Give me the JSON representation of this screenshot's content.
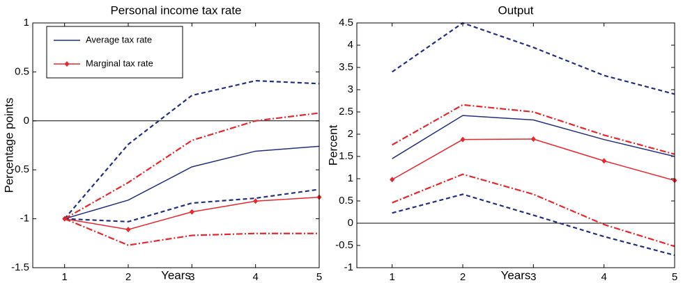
{
  "chart_data": [
    {
      "type": "line",
      "title": "Personal income tax rate",
      "xlabel": "Years",
      "ylabel": "Percentage points",
      "x": [
        1,
        2,
        3,
        4,
        5
      ],
      "xlim": [
        0.5,
        5
      ],
      "xticks": [
        1,
        2,
        3,
        4,
        5
      ],
      "ylim": [
        -1.5,
        1
      ],
      "yticks": [
        -1.5,
        -1,
        -0.5,
        0,
        0.5,
        1
      ],
      "zeroline": true,
      "legend": "upper left",
      "series": [
        {
          "name": "Average tax rate",
          "color": "#232f7e",
          "style": "solid",
          "values": [
            -1,
            -0.81,
            -0.47,
            -0.31,
            -0.26
          ]
        },
        {
          "name": "Marginal tax rate",
          "color": "#e8262b",
          "style": "solid",
          "marker": "diamond",
          "values": [
            -1,
            -1.11,
            -0.93,
            -0.82,
            -0.78
          ]
        },
        {
          "color": "#232f7e",
          "style": "dashed",
          "values": [
            -1,
            -0.24,
            0.26,
            0.41,
            0.38
          ]
        },
        {
          "color": "#232f7e",
          "style": "dashed",
          "values": [
            -1,
            -1.03,
            -0.84,
            -0.79,
            -0.7
          ]
        },
        {
          "color": "#e8262b",
          "style": "dashdot",
          "values": [
            -1,
            -0.63,
            -0.2,
            0.0,
            0.08
          ]
        },
        {
          "color": "#e8262b",
          "style": "dashdot",
          "values": [
            -1,
            -1.27,
            -1.17,
            -1.15,
            -1.15
          ]
        }
      ]
    },
    {
      "type": "line",
      "title": "Output",
      "xlabel": "Years",
      "ylabel": "Percent",
      "x": [
        1,
        2,
        3,
        4,
        5
      ],
      "xlim": [
        0.5,
        5
      ],
      "xticks": [
        1,
        2,
        3,
        4,
        5
      ],
      "ylim": [
        -1,
        4.5
      ],
      "yticks": [
        -1,
        -0.5,
        0,
        0.5,
        1,
        1.5,
        2,
        2.5,
        3,
        3.5,
        4,
        4.5
      ],
      "zeroline": true,
      "series": [
        {
          "color": "#232f7e",
          "style": "solid",
          "values": [
            1.45,
            2.42,
            2.32,
            1.88,
            1.5
          ]
        },
        {
          "color": "#e8262b",
          "style": "solid",
          "marker": "diamond",
          "values": [
            0.98,
            1.88,
            1.89,
            1.4,
            0.96
          ]
        },
        {
          "color": "#232f7e",
          "style": "dashed",
          "values": [
            3.4,
            4.5,
            3.95,
            3.32,
            2.9
          ]
        },
        {
          "color": "#232f7e",
          "style": "dashed",
          "values": [
            0.23,
            0.65,
            0.18,
            -0.3,
            -0.72
          ]
        },
        {
          "color": "#e8262b",
          "style": "dashdot",
          "values": [
            1.76,
            2.66,
            2.5,
            1.98,
            1.55
          ]
        },
        {
          "color": "#e8262b",
          "style": "dashdot",
          "values": [
            0.46,
            1.1,
            0.65,
            -0.03,
            -0.52
          ]
        }
      ]
    }
  ]
}
